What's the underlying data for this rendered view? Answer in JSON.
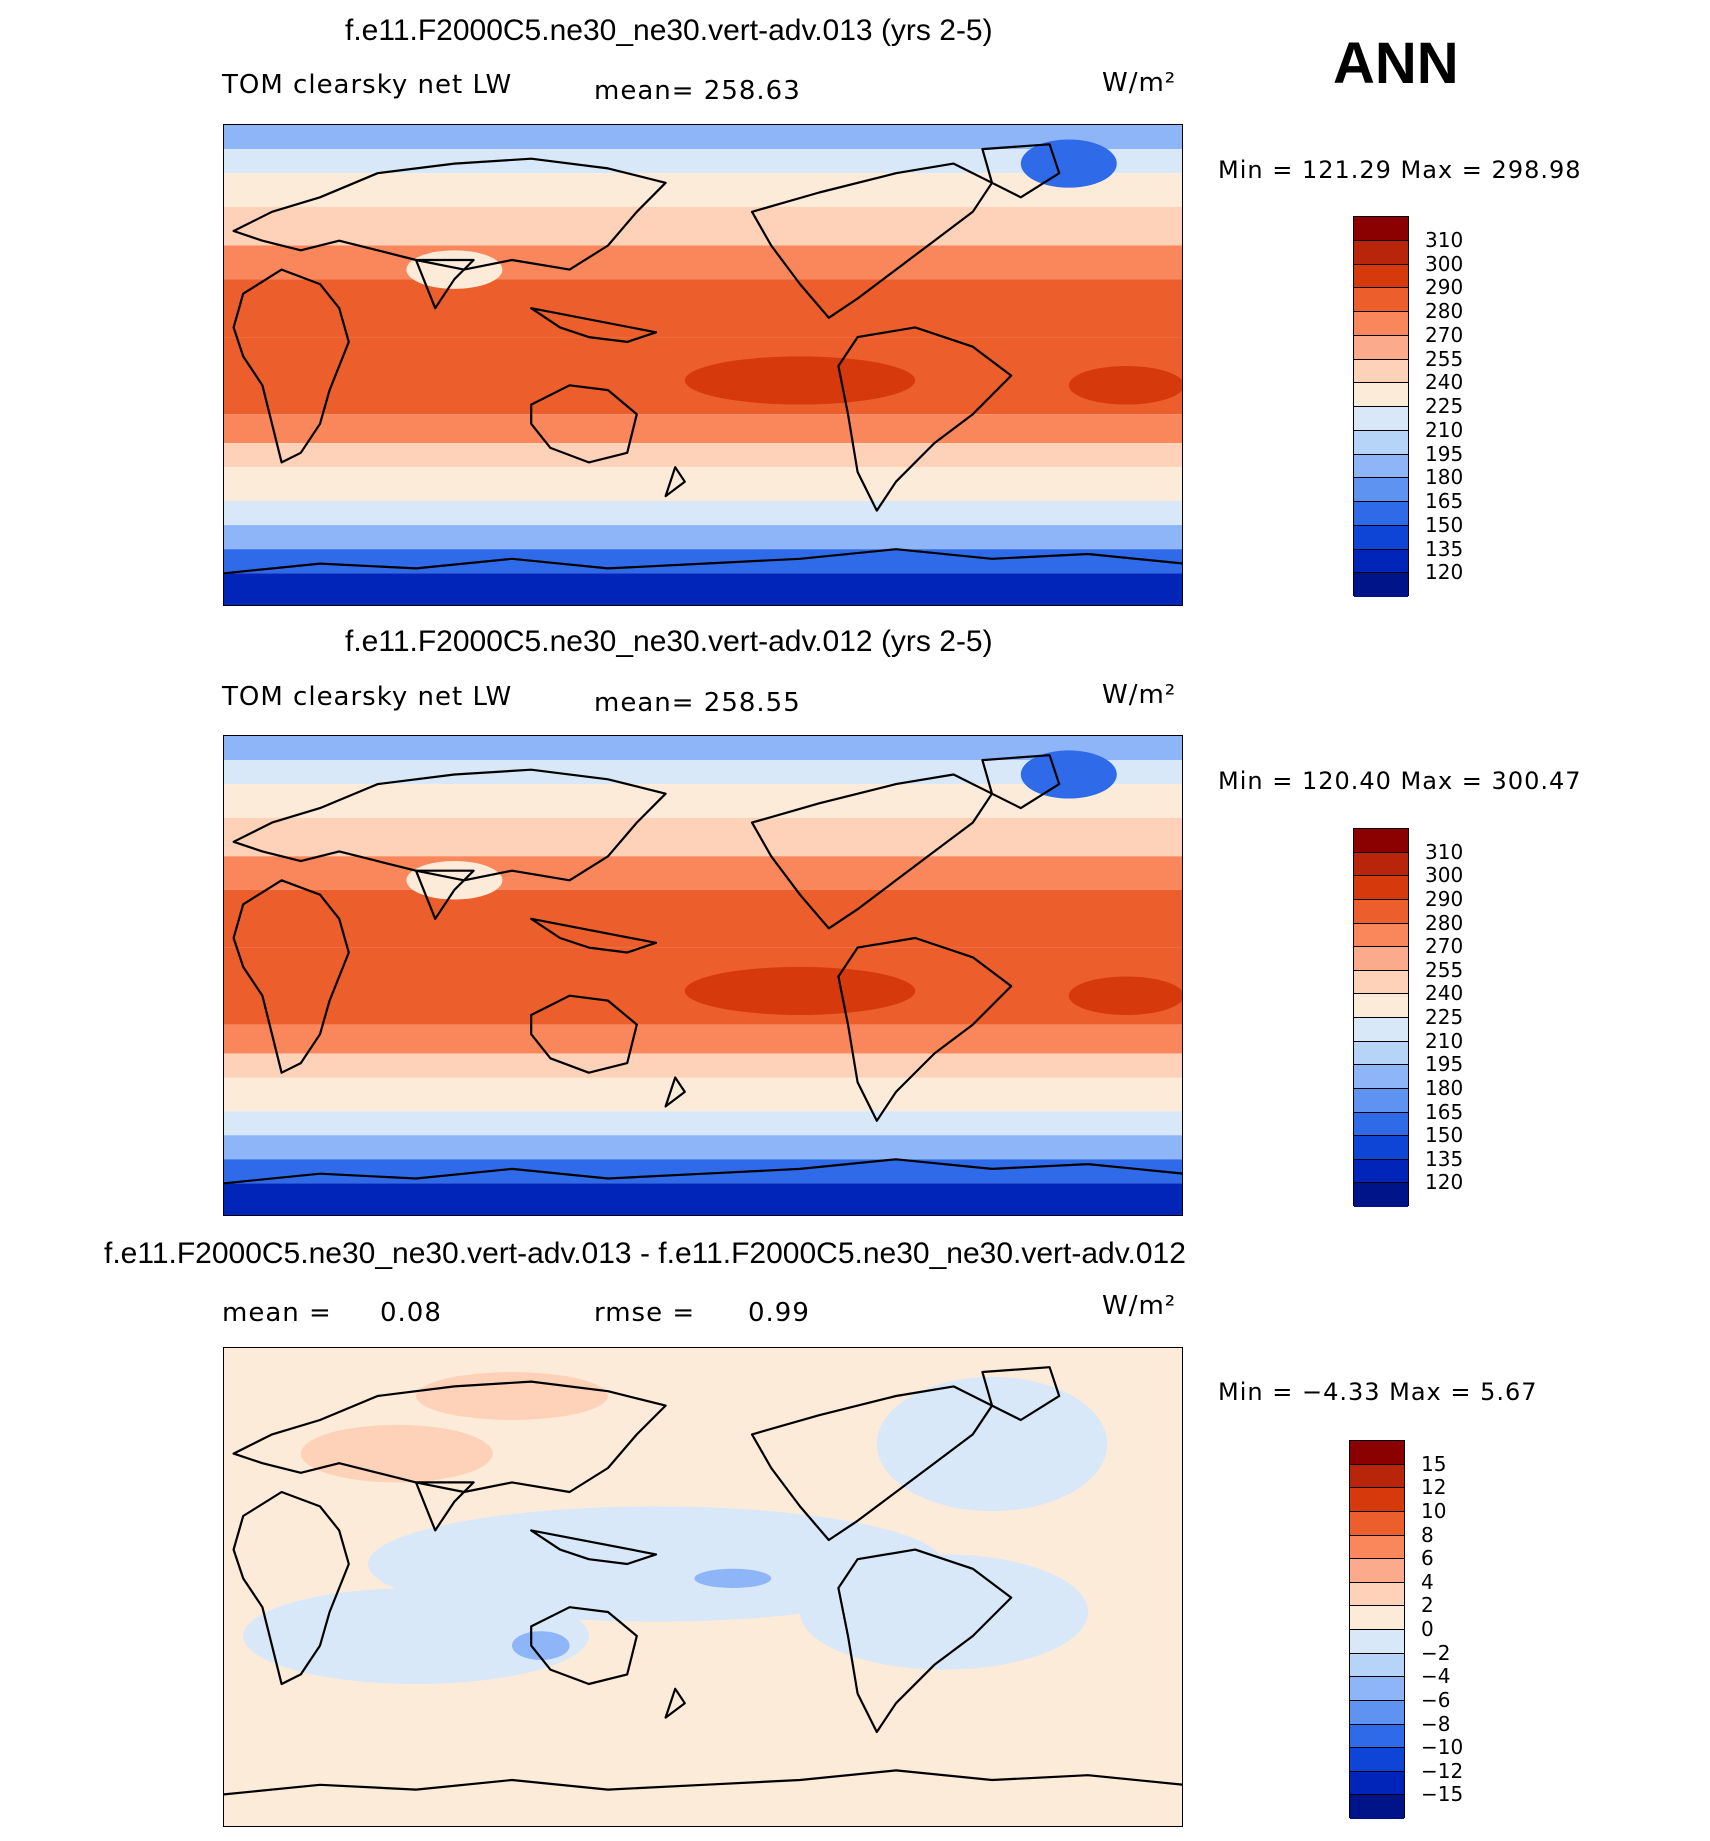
{
  "season": "ANN",
  "panels": [
    {
      "title": "f.e11.F2000C5.ne30_ne30.vert-adv.013 (yrs 2-5)",
      "left_label": "TOM clearsky net LW",
      "mean_text": "mean= 258.63",
      "units": "W/m²",
      "minmax": "Min = 121.29 Max = 298.98",
      "colorbar": {
        "labels": [
          "310",
          "300",
          "290",
          "280",
          "270",
          "255",
          "240",
          "225",
          "210",
          "195",
          "180",
          "165",
          "150",
          "135",
          "120"
        ],
        "colors": [
          "#8b0000",
          "#b8250a",
          "#d6390b",
          "#ec5f2c",
          "#f9875b",
          "#fbab8b",
          "#fdd2b8",
          "#fcebd9",
          "#d8e8f8",
          "#b6d3f8",
          "#8db5f7",
          "#5e93f2",
          "#2f6be9",
          "#0f45d6",
          "#0025b8",
          "#001489"
        ]
      }
    },
    {
      "title": "f.e11.F2000C5.ne30_ne30.vert-adv.012 (yrs 2-5)",
      "left_label": "TOM clearsky net LW",
      "mean_text": "mean= 258.55",
      "units": "W/m²",
      "minmax": "Min = 120.40 Max = 300.47",
      "colorbar": {
        "labels": [
          "310",
          "300",
          "290",
          "280",
          "270",
          "255",
          "240",
          "225",
          "210",
          "195",
          "180",
          "165",
          "150",
          "135",
          "120"
        ],
        "colors": [
          "#8b0000",
          "#b8250a",
          "#d6390b",
          "#ec5f2c",
          "#f9875b",
          "#fbab8b",
          "#fdd2b8",
          "#fcebd9",
          "#d8e8f8",
          "#b6d3f8",
          "#8db5f7",
          "#5e93f2",
          "#2f6be9",
          "#0f45d6",
          "#0025b8",
          "#001489"
        ]
      }
    },
    {
      "title": "f.e11.F2000C5.ne30_ne30.vert-adv.013 - f.e11.F2000C5.ne30_ne30.vert-adv.012",
      "mean_label": "mean =",
      "mean_value": "0.08",
      "rmse_label": "rmse =",
      "rmse_value": "0.99",
      "units": "W/m²",
      "minmax": "Min = −4.33 Max = 5.67",
      "colorbar": {
        "labels": [
          "15",
          "12",
          "10",
          "8",
          "6",
          "4",
          "2",
          "0",
          "−2",
          "−4",
          "−6",
          "−8",
          "−10",
          "−12",
          "−15"
        ],
        "colors": [
          "#8b0000",
          "#b8250a",
          "#d6390b",
          "#ec5f2c",
          "#f9875b",
          "#fbab8b",
          "#fdd2b8",
          "#fcebd9",
          "#d8e8f8",
          "#b6d3f8",
          "#8db5f7",
          "#5e93f2",
          "#2f6be9",
          "#0f45d6",
          "#0025b8",
          "#001489"
        ]
      }
    }
  ],
  "palette": {
    "deep_blue": "#0025b8",
    "mid_blue": "#2f6be9",
    "light_blue": "#8db5f7",
    "pale_blue": "#d8e8f8",
    "cream": "#fcebd9",
    "peach": "#fdd2b8",
    "salmon": "#f9875b",
    "orange": "#ec5f2c",
    "red": "#d6390b",
    "dark_red": "#b8250a",
    "coastline": "#000000"
  }
}
